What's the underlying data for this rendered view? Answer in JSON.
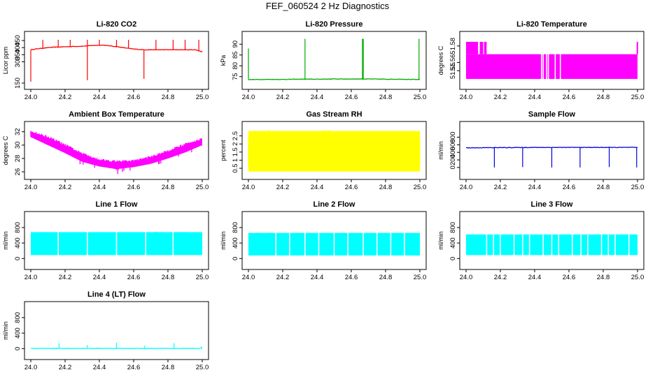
{
  "page": {
    "title": "FEF_060524  2 Hz Diagnostics"
  },
  "chart_data": [
    {
      "title": "Li-820 CO2",
      "type": "line",
      "color": "#ff0000",
      "xlabel": "",
      "ylabel": "Licor ppm",
      "xlim": [
        24.0,
        25.0
      ],
      "ylim": [
        150,
        470
      ],
      "xticks": [
        "24.0",
        "24.2",
        "24.4",
        "24.6",
        "24.8",
        "25.0"
      ],
      "yticks": [
        150,
        300,
        350,
        400,
        450
      ],
      "series": [
        {
          "name": "CO2",
          "x": [
            24.0,
            24.06,
            24.12,
            24.18,
            24.24,
            24.3,
            24.36,
            24.42,
            24.48,
            24.54,
            24.6,
            24.66,
            24.72,
            24.78,
            24.84,
            24.9,
            24.96,
            25.0
          ],
          "values": [
            385,
            395,
            402,
            405,
            408,
            410,
            415,
            418,
            410,
            400,
            390,
            385,
            385,
            385,
            385,
            385,
            385,
            370
          ],
          "spikes": [
            {
              "x": 24.0,
              "y": 160
            },
            {
              "x": 24.07,
              "y": 455
            },
            {
              "x": 24.16,
              "y": 455
            },
            {
              "x": 24.23,
              "y": 455
            },
            {
              "x": 24.33,
              "y": 170
            },
            {
              "x": 24.33,
              "y": 455
            },
            {
              "x": 24.4,
              "y": 455
            },
            {
              "x": 24.5,
              "y": 455
            },
            {
              "x": 24.57,
              "y": 455
            },
            {
              "x": 24.66,
              "y": 180
            },
            {
              "x": 24.73,
              "y": 455
            },
            {
              "x": 24.83,
              "y": 455
            },
            {
              "x": 24.9,
              "y": 455
            },
            {
              "x": 24.98,
              "y": 455
            }
          ]
        }
      ]
    },
    {
      "title": "Li-820 Pressure",
      "type": "line",
      "color": "#00aa00",
      "xlabel": "",
      "ylabel": "kPa",
      "xlim": [
        24.0,
        25.0
      ],
      "ylim": [
        72,
        93
      ],
      "xticks": [
        "24.0",
        "24.2",
        "24.4",
        "24.6",
        "24.8",
        "25.0"
      ],
      "yticks": [
        75,
        80,
        85,
        90
      ],
      "series": [
        {
          "name": "Pressure",
          "x": [
            24.0,
            24.1,
            24.2,
            24.3,
            24.4,
            24.5,
            24.6,
            24.7,
            24.8,
            24.9,
            25.0
          ],
          "values": [
            73.6,
            73.7,
            73.7,
            73.8,
            73.8,
            73.9,
            73.9,
            73.9,
            73.8,
            73.8,
            73.6
          ],
          "spikes": [
            {
              "x": 24.0,
              "y": 88
            },
            {
              "x": 24.33,
              "y": 92.5
            },
            {
              "x": 24.665,
              "y": 92.5
            },
            {
              "x": 24.67,
              "y": 92.5
            },
            {
              "x": 24.995,
              "y": 92.5
            }
          ]
        }
      ]
    },
    {
      "title": "Li-820 Temperature",
      "type": "band",
      "color": "#ff00ff",
      "xlabel": "",
      "ylabel": "degrees C",
      "xlim": [
        24.0,
        25.0
      ],
      "ylim": [
        51.535,
        51.59
      ],
      "xticks": [
        "24.0",
        "24.2",
        "24.4",
        "24.6",
        "24.8",
        "25.0"
      ],
      "yticks": [
        51.55,
        51.56,
        51.58
      ],
      "series": [
        {
          "name": "Temperature",
          "range": [
            51.54,
            51.57
          ],
          "high": 51.585,
          "high_segments": [
            [
              24.0,
              24.07
            ],
            [
              24.08,
              24.1
            ],
            [
              24.105,
              24.12
            ],
            [
              24.995,
              25.0
            ]
          ],
          "gaps": [
            24.44,
            24.45,
            24.47,
            24.48,
            24.52,
            24.55
          ]
        }
      ]
    },
    {
      "title": "Ambient Box Temperature",
      "type": "band",
      "color": "#ff00ff",
      "xlabel": "",
      "ylabel": "degrees C",
      "xlim": [
        24.0,
        25.0
      ],
      "ylim": [
        25.8,
        32.6
      ],
      "xticks": [
        "24.0",
        "24.2",
        "24.4",
        "24.6",
        "24.8",
        "25.0"
      ],
      "yticks": [
        26,
        28,
        30,
        32
      ],
      "series": [
        {
          "name": "Box Temp",
          "x": [
            24.0,
            24.1,
            24.2,
            24.3,
            24.4,
            24.5,
            24.6,
            24.7,
            24.8,
            24.9,
            25.0
          ],
          "upper": [
            32.2,
            31.4,
            30.2,
            28.9,
            28.0,
            27.7,
            27.8,
            28.4,
            29.3,
            30.3,
            31.1
          ],
          "lower": [
            31.2,
            30.0,
            28.8,
            27.5,
            26.8,
            26.4,
            26.7,
            27.2,
            28.0,
            28.9,
            30.0
          ]
        }
      ]
    },
    {
      "title": "Gas Stream RH",
      "type": "band",
      "color": "#ffff00",
      "xlabel": "",
      "ylabel": "percent",
      "xlim": [
        24.0,
        25.0
      ],
      "ylim": [
        0.2,
        3.0
      ],
      "xticks": [
        "24.0",
        "24.2",
        "24.4",
        "24.6",
        "24.8",
        "25.0"
      ],
      "yticks": [
        0.5,
        1.0,
        1.5,
        2.0,
        2.5
      ],
      "series": [
        {
          "name": "RH",
          "range": [
            0.3,
            2.8
          ],
          "core": [
            1.6,
            2.7
          ]
        }
      ]
    },
    {
      "title": "Sample Flow",
      "type": "line",
      "color": "#0000dd",
      "xlabel": "",
      "ylabel": "ml/min",
      "xlim": [
        24.0,
        25.0
      ],
      "ylim": [
        -150,
        1050
      ],
      "xticks": [
        "24.0",
        "24.2",
        "24.4",
        "24.6",
        "24.8",
        "25.0"
      ],
      "yticks": [
        0,
        200,
        400,
        600,
        800
      ],
      "series": [
        {
          "name": "Sample Flow",
          "x": [
            24.0,
            24.2,
            24.4,
            24.6,
            24.8,
            25.0
          ],
          "values": [
            520,
            525,
            530,
            530,
            530,
            530
          ],
          "drops": [
            {
              "x": 24.165,
              "y": 0
            },
            {
              "x": 24.33,
              "y": 10
            },
            {
              "x": 24.5,
              "y": 0
            },
            {
              "x": 24.665,
              "y": 0
            },
            {
              "x": 24.835,
              "y": 10
            },
            {
              "x": 24.995,
              "y": 0
            }
          ]
        }
      ]
    },
    {
      "title": "Line 1 Flow",
      "type": "band",
      "color": "#00ffff",
      "xlabel": "",
      "ylabel": "ml/min",
      "xlim": [
        24.0,
        25.0
      ],
      "ylim": [
        -120,
        1050
      ],
      "xticks": [
        "24.0",
        "24.2",
        "24.4",
        "24.6",
        "24.8",
        "25.0"
      ],
      "yticks": [
        0,
        400,
        800
      ],
      "series": [
        {
          "name": "Line 1",
          "range": [
            90,
            680
          ],
          "gaps": [
            24.16,
            24.33,
            24.5,
            24.67,
            24.83
          ]
        }
      ]
    },
    {
      "title": "Line 2 Flow",
      "type": "band",
      "color": "#00ffff",
      "xlabel": "",
      "ylabel": "ml/min",
      "xlim": [
        24.0,
        25.0
      ],
      "ylim": [
        -120,
        1050
      ],
      "xticks": [
        "24.0",
        "24.2",
        "24.4",
        "24.6",
        "24.8",
        "25.0"
      ],
      "yticks": [
        0,
        400,
        800
      ],
      "series": [
        {
          "name": "Line 2",
          "range": [
            80,
            660
          ],
          "gaps": [
            24.16,
            24.24,
            24.33,
            24.41,
            24.5,
            24.58,
            24.67,
            24.75,
            24.83,
            24.91
          ]
        }
      ]
    },
    {
      "title": "Line 3 Flow",
      "type": "band",
      "color": "#00ffff",
      "xlabel": "",
      "ylabel": "ml/min",
      "xlim": [
        24.0,
        25.0
      ],
      "ylim": [
        -120,
        1050
      ],
      "xticks": [
        "24.0",
        "24.2",
        "24.4",
        "24.6",
        "24.8",
        "25.0"
      ],
      "yticks": [
        0,
        400,
        800
      ],
      "series": [
        {
          "name": "Line 3",
          "range": [
            90,
            620
          ],
          "gaps": [
            24.12,
            24.16,
            24.2,
            24.28,
            24.33,
            24.37,
            24.45,
            24.5,
            24.54,
            24.62,
            24.67,
            24.71,
            24.79,
            24.83,
            24.87,
            24.95
          ]
        }
      ]
    },
    {
      "title": "Line 4 (LT) Flow",
      "type": "line",
      "color": "#00ffff",
      "xlabel": "",
      "ylabel": "ml/min",
      "xlim": [
        24.0,
        25.0
      ],
      "ylim": [
        -120,
        1050
      ],
      "xticks": [
        "24.0",
        "24.2",
        "24.4",
        "24.6",
        "24.8",
        "25.0"
      ],
      "yticks": [
        0,
        400,
        800
      ],
      "series": [
        {
          "name": "Line 4",
          "x": [
            24.0,
            25.0
          ],
          "values": [
            5,
            5
          ],
          "spikes": [
            {
              "x": 24.165,
              "y": 140
            },
            {
              "x": 24.33,
              "y": 90
            },
            {
              "x": 24.5,
              "y": 150
            },
            {
              "x": 24.665,
              "y": 80
            },
            {
              "x": 24.835,
              "y": 140
            },
            {
              "x": 24.995,
              "y": 60
            }
          ]
        }
      ]
    }
  ]
}
